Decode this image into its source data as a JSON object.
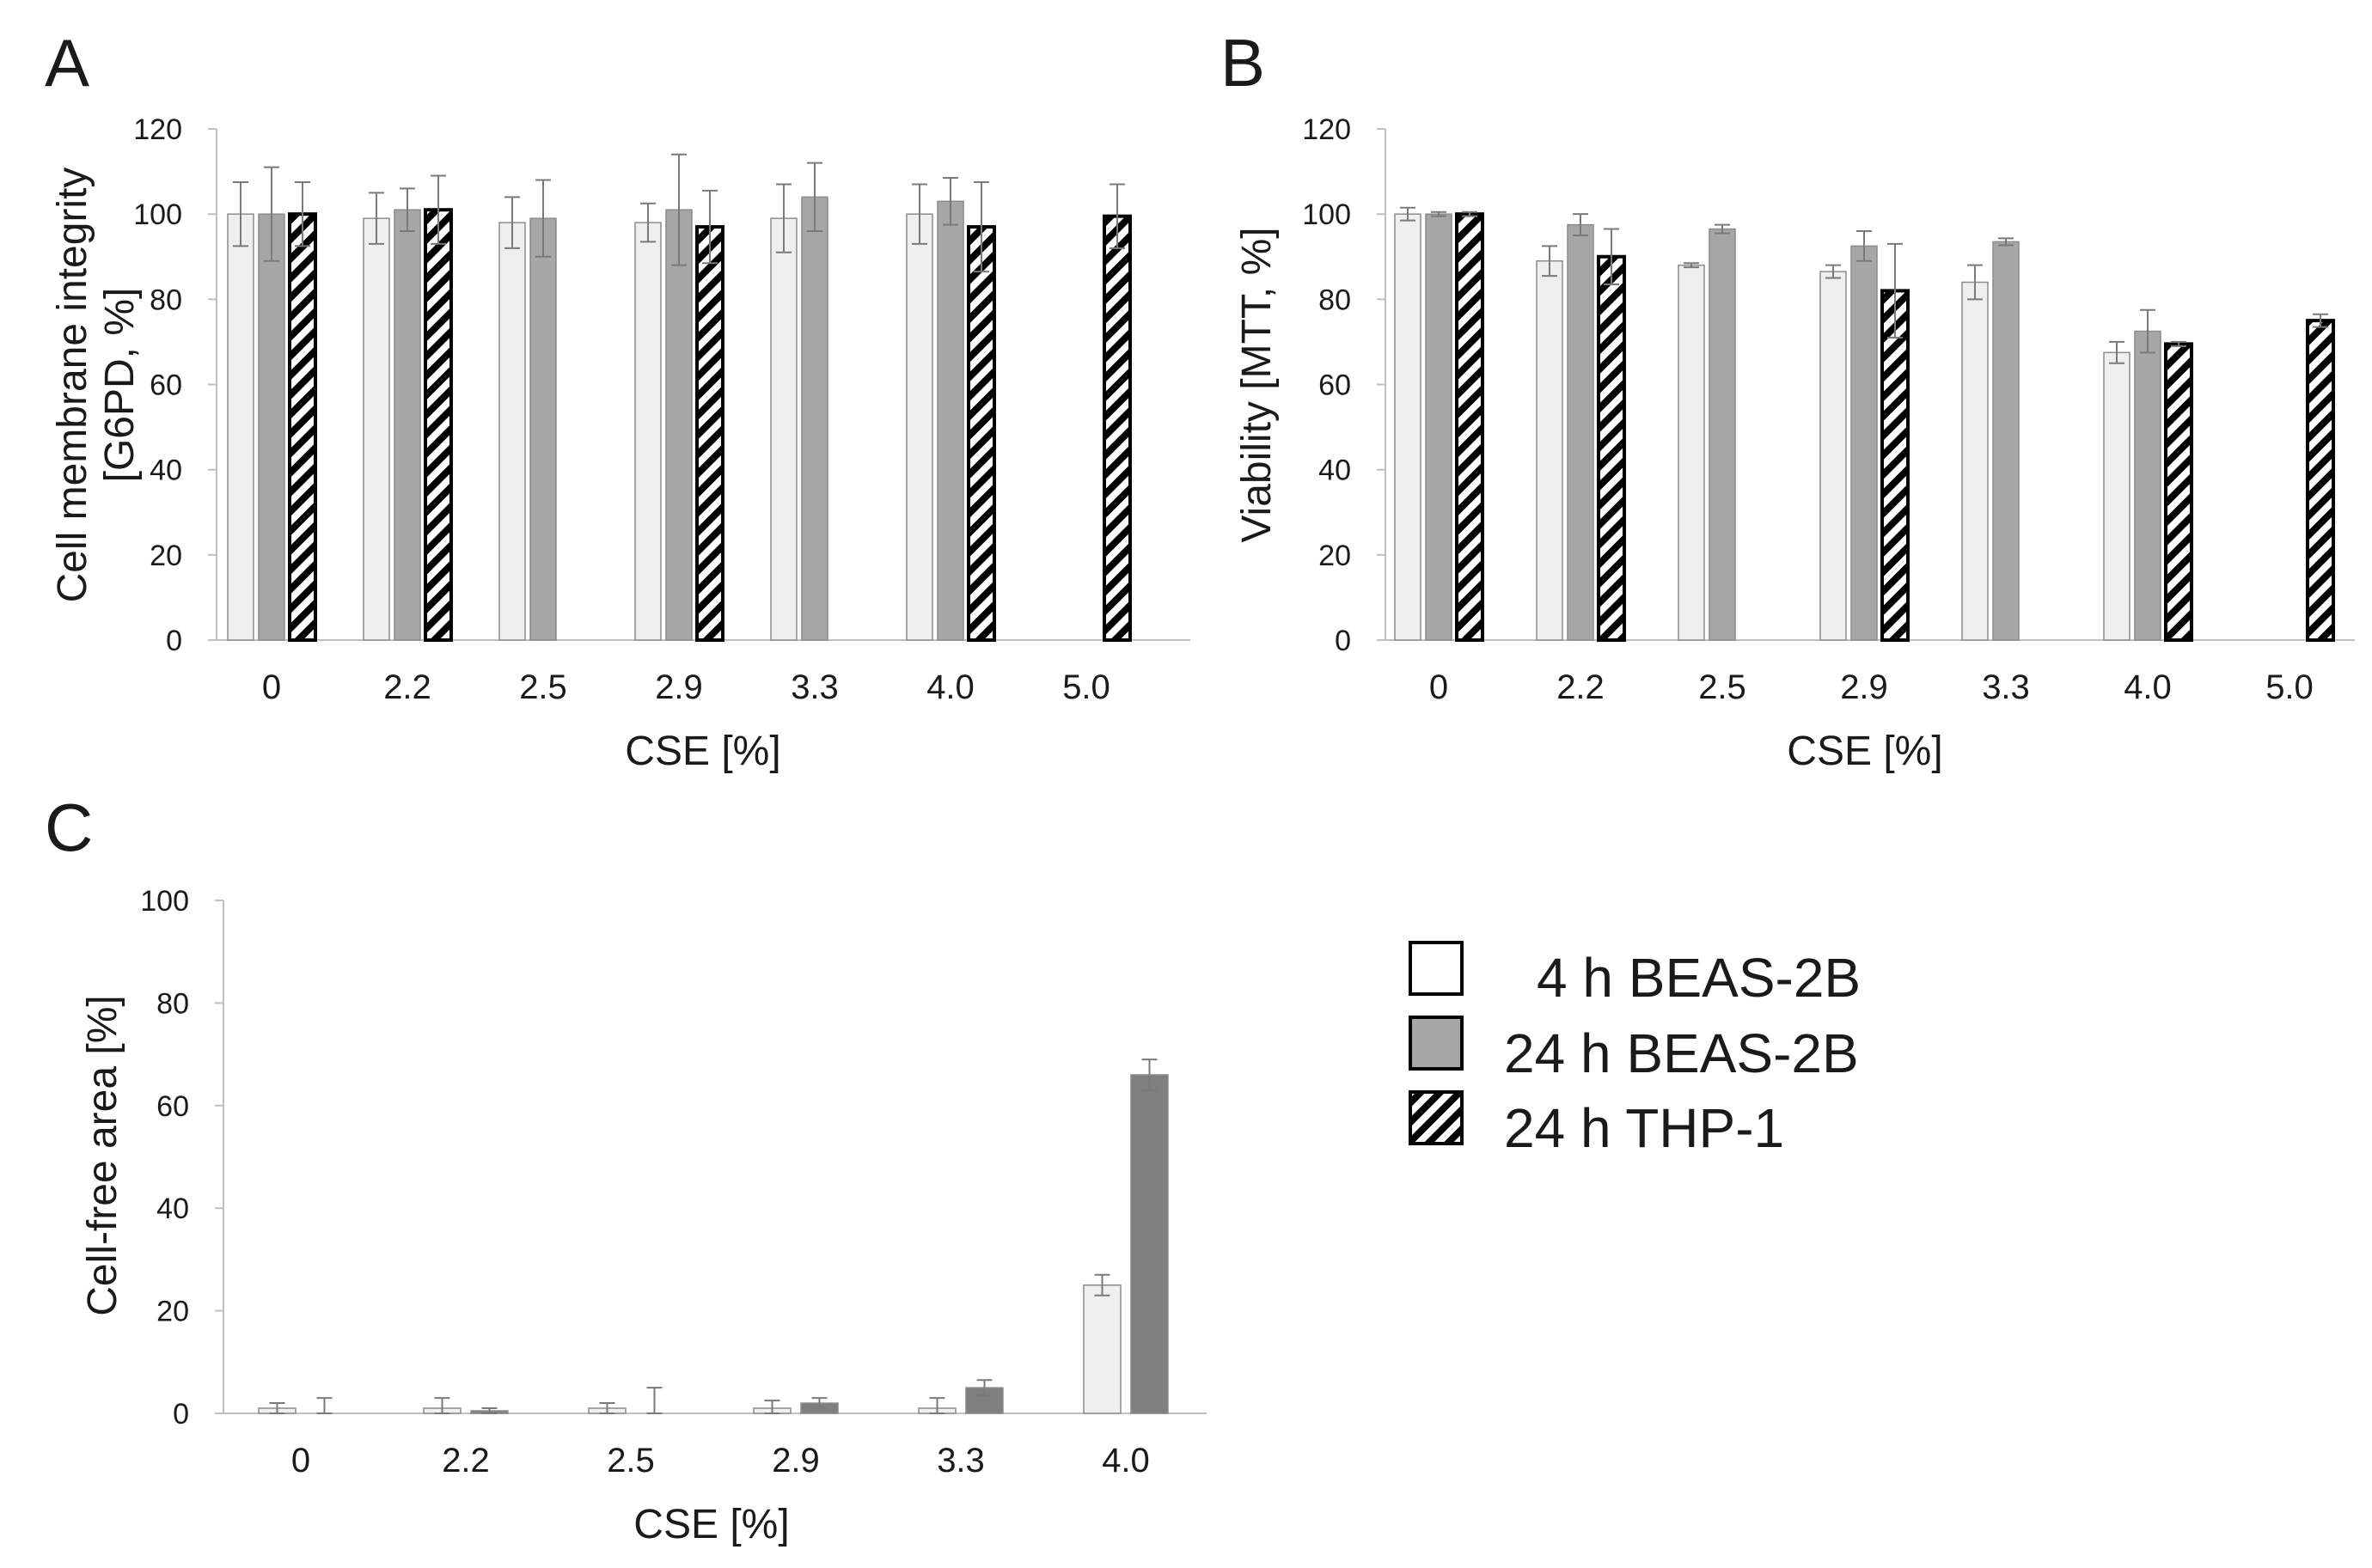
{
  "legend": {
    "items": [
      {
        "label": "4 h BEAS-2B",
        "style": "light"
      },
      {
        "label": "24 h BEAS-2B",
        "style": "gray"
      },
      {
        "label": "24 h THP-1",
        "style": "hatch"
      }
    ]
  },
  "colors": {
    "light": "#efefef",
    "gray": "#a6a6a6",
    "dark_gray": "#7f7f7f",
    "hatch": "#000000",
    "axis": "#bfbfbf"
  },
  "chart_data": [
    {
      "panel": "A",
      "type": "bar",
      "xlabel": "CSE [%]",
      "ylabel_lines": [
        "Cell membrane integrity",
        "[G6PD, %]"
      ],
      "ylim": [
        0,
        120
      ],
      "yticks": [
        0,
        20,
        40,
        60,
        80,
        100,
        120
      ],
      "categories": [
        "0",
        "2.2",
        "2.5",
        "2.9",
        "3.3",
        "4.0",
        "5.0"
      ],
      "series": [
        {
          "name": "4 h BEAS-2B",
          "style": "light",
          "values": [
            100,
            99,
            98,
            98,
            99,
            100,
            null
          ],
          "errors": [
            7.5,
            6,
            6,
            4.5,
            8,
            7,
            null
          ]
        },
        {
          "name": "24 h BEAS-2B",
          "style": "gray",
          "values": [
            100,
            101,
            99,
            101,
            104,
            103,
            null
          ],
          "errors": [
            11,
            5,
            9,
            13,
            8,
            5.5,
            null
          ]
        },
        {
          "name": "24 h THP-1",
          "style": "hatch",
          "values": [
            100,
            101,
            null,
            97,
            null,
            97,
            99.5
          ],
          "errors": [
            7.5,
            8,
            null,
            8.5,
            null,
            10.5,
            7.5
          ]
        }
      ]
    },
    {
      "panel": "B",
      "type": "bar",
      "xlabel": "CSE [%]",
      "ylabel_lines": [
        "Viability [MTT, %]"
      ],
      "ylim": [
        0,
        120
      ],
      "yticks": [
        0,
        20,
        40,
        60,
        80,
        100,
        120
      ],
      "categories": [
        "0",
        "2.2",
        "2.5",
        "2.9",
        "3.3",
        "4.0",
        "5.0"
      ],
      "series": [
        {
          "name": "4 h BEAS-2B",
          "style": "light",
          "values": [
            100,
            89,
            88,
            86.5,
            84,
            67.5,
            null
          ],
          "errors": [
            1.5,
            3.5,
            0.5,
            1.5,
            4,
            2.5,
            null
          ]
        },
        {
          "name": "24 h BEAS-2B",
          "style": "gray",
          "values": [
            100,
            97.5,
            96.5,
            92.5,
            93.5,
            72.5,
            null
          ],
          "errors": [
            0.5,
            2.5,
            1,
            3.5,
            0.8,
            5,
            null
          ]
        },
        {
          "name": "24 h THP-1",
          "style": "hatch",
          "values": [
            100,
            90,
            null,
            82,
            null,
            69.5,
            75
          ],
          "errors": [
            0.5,
            6.5,
            null,
            11,
            null,
            0.5,
            1.5
          ]
        }
      ]
    },
    {
      "panel": "C",
      "type": "bar",
      "xlabel": "CSE [%]",
      "ylabel_lines": [
        "Cell-free area [%]"
      ],
      "ylim": [
        0,
        100
      ],
      "yticks": [
        0,
        20,
        40,
        60,
        80,
        100
      ],
      "categories": [
        "0",
        "2.2",
        "2.5",
        "2.9",
        "3.3",
        "4.0"
      ],
      "series": [
        {
          "name": "4 h BEAS-2B",
          "style": "light",
          "values": [
            1,
            1,
            1,
            1,
            1,
            25
          ],
          "errors": [
            1,
            2,
            1,
            1.5,
            2,
            2
          ]
        },
        {
          "name": "24 h BEAS-2B",
          "style": "dark_gray",
          "values": [
            0,
            0.5,
            0,
            2,
            5,
            66
          ],
          "errors": [
            3,
            0.5,
            5,
            1,
            1.5,
            3
          ]
        }
      ]
    }
  ]
}
